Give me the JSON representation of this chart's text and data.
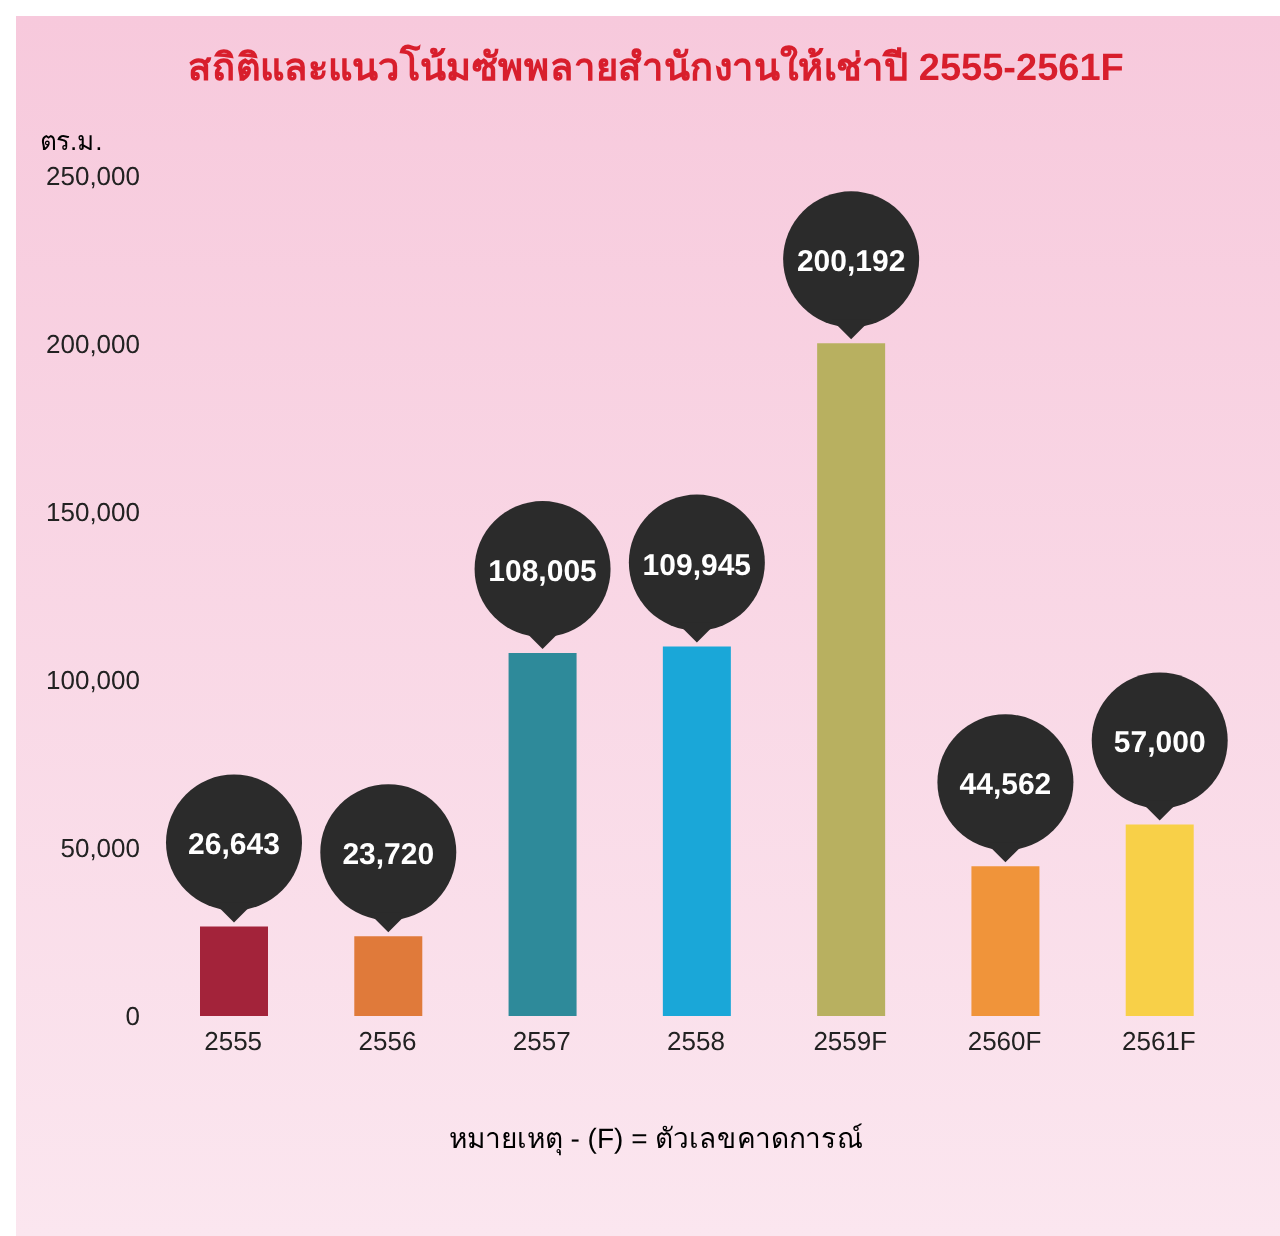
{
  "chart_data": {
    "type": "bar",
    "title": "สถิติและแนวโน้มซัพพลายสำนักงานให้เช่าปี 2555-2561F",
    "ylabel": "ตร.ม.",
    "categories": [
      "2555",
      "2556",
      "2557",
      "2558",
      "2559F",
      "2560F",
      "2561F"
    ],
    "values": [
      26643,
      23720,
      108005,
      109945,
      200192,
      44562,
      57000
    ],
    "colors": [
      "#a3233a",
      "#e07a3a",
      "#2e8a9a",
      "#1aa7d8",
      "#b8b060",
      "#f0943a",
      "#f8d048"
    ],
    "value_labels": [
      "26,643",
      "23,720",
      "108,005",
      "109,945",
      "200,192",
      "44,562",
      "57,000"
    ],
    "ylim": [
      0,
      250000
    ],
    "yticks": [
      0,
      {
        "value": 50000,
        "label": "50,000"
      },
      {
        "value": 100000,
        "label": "100,000"
      },
      {
        "value": 150000,
        "label": "150,000"
      },
      {
        "value": 200000,
        "label": "200,000"
      },
      {
        "value": 250000,
        "label": "250,000"
      }
    ],
    "grid": false,
    "legend": false,
    "annotations": [
      "หมายเหตุ - (F) = ตัวเลขคาดการณ์"
    ]
  }
}
